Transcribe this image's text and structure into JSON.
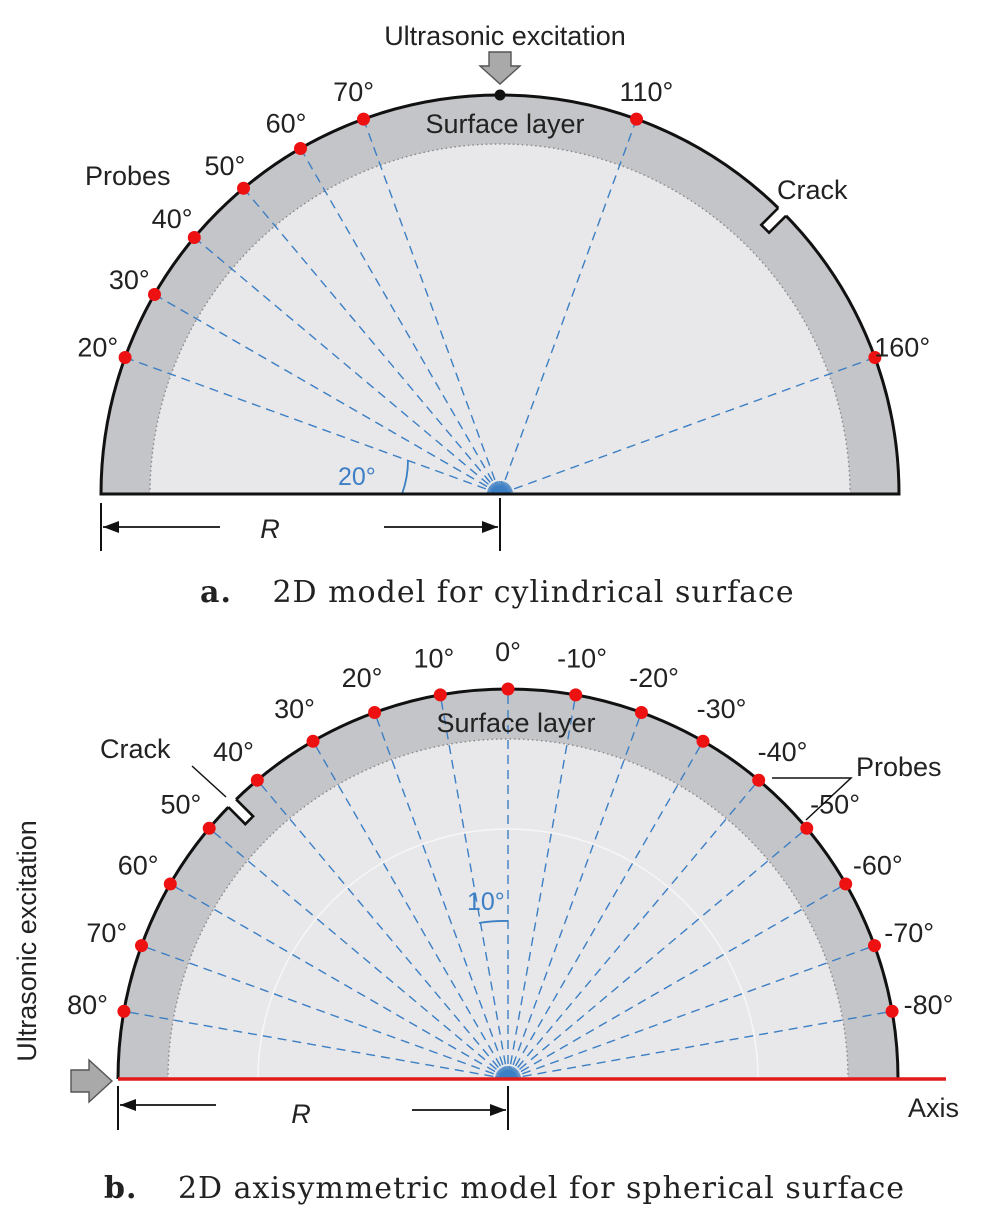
{
  "colors": {
    "surface_layer": "#c4c5c8",
    "inner_region": "#e8e8ea",
    "outline": "#111111",
    "probe": "#ee1111",
    "ray": "#3c7fc4",
    "axis_line": "#e11a1a",
    "arrow_fill": "#a9a9a9"
  },
  "diagram_a": {
    "caption_letter": "a.",
    "caption_text": "2D model for cylindrical surface",
    "excitation_label": "Ultrasonic excitation",
    "surface_label": "Surface layer",
    "probes_label": "Probes",
    "crack_label": "Crack",
    "radius_label": "R",
    "spacing_label": "20°",
    "probe_angles": [
      20,
      30,
      40,
      50,
      60,
      70,
      110,
      160
    ],
    "probe_labels": [
      "20°",
      "30°",
      "40°",
      "50°",
      "60°",
      "70°",
      "110°",
      "160°"
    ],
    "crack_angle": 135
  },
  "diagram_b": {
    "caption_letter": "b.",
    "caption_text": "2D axisymmetric model for spherical surface",
    "excitation_label": "Ultrasonic excitation",
    "surface_label": "Surface layer",
    "probes_label": "Probes",
    "crack_label": "Crack",
    "radius_label": "R",
    "axis_label": "Axis",
    "spacing_label": "10°",
    "probe_angles": [
      80,
      70,
      60,
      50,
      40,
      30,
      20,
      10,
      0,
      -10,
      -20,
      -30,
      -40,
      -50,
      -60,
      -70,
      -80
    ],
    "probe_labels": [
      "80°",
      "70°",
      "60°",
      "50°",
      "40°",
      "30°",
      "20°",
      "10°",
      "0°",
      "-10°",
      "-20°",
      "-30°",
      "-40°",
      "-50°",
      "-60°",
      "-70°",
      "-80°"
    ],
    "crack_angle": 45
  }
}
